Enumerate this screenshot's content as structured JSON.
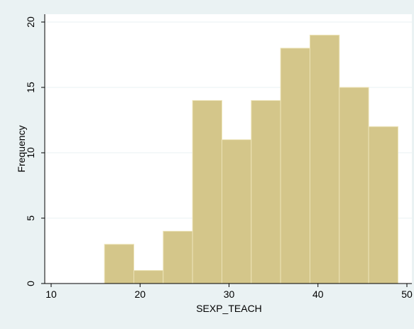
{
  "chart_data": {
    "type": "bar",
    "title": "",
    "xlabel": "SEXP_TEACH",
    "ylabel": "Frequency",
    "xlim": [
      10,
      50
    ],
    "ylim": [
      0,
      20
    ],
    "xticks": [
      "10",
      "20",
      "30",
      "40",
      "50"
    ],
    "yticks": [
      "0",
      "5",
      "10",
      "15",
      "20"
    ],
    "grid": true,
    "legend": "none",
    "bins": [
      {
        "start": 16.0,
        "end": 19.3,
        "value": 3
      },
      {
        "start": 19.3,
        "end": 22.6,
        "value": 1
      },
      {
        "start": 22.6,
        "end": 25.9,
        "value": 4
      },
      {
        "start": 25.9,
        "end": 29.2,
        "value": 14
      },
      {
        "start": 29.2,
        "end": 32.5,
        "value": 11
      },
      {
        "start": 32.5,
        "end": 35.8,
        "value": 14
      },
      {
        "start": 35.8,
        "end": 39.1,
        "value": 18
      },
      {
        "start": 39.1,
        "end": 42.4,
        "value": 19
      },
      {
        "start": 42.4,
        "end": 45.7,
        "value": 15
      },
      {
        "start": 45.7,
        "end": 49.0,
        "value": 12
      }
    ]
  },
  "colors": {
    "bar_fill": "#d4c68a",
    "bar_stroke": "#ece3b7",
    "background": "#eaf2f3",
    "plot_area": "#ffffff",
    "gridline": "#eaf2f3"
  }
}
